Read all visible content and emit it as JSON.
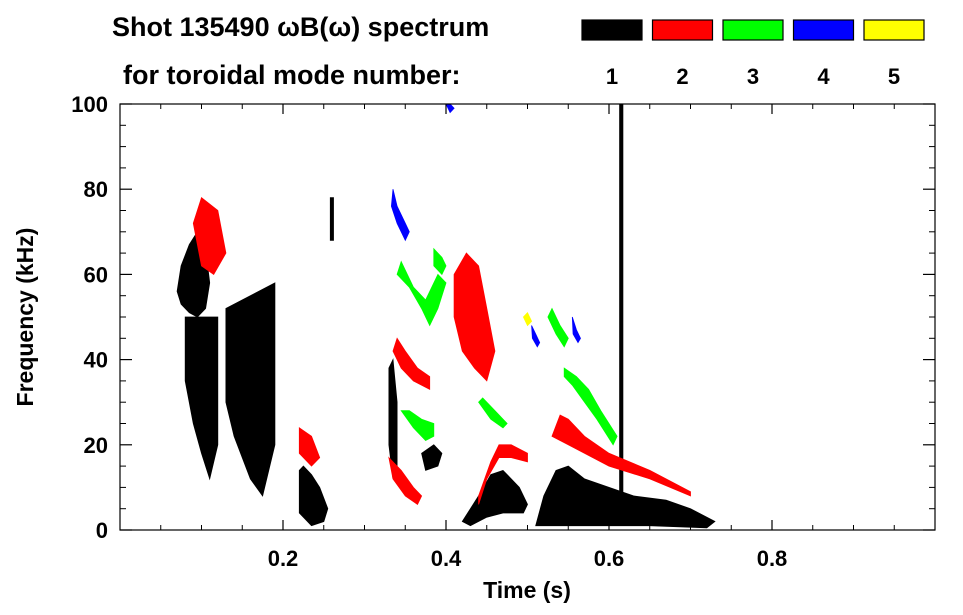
{
  "chart_data": {
    "type": "heatmap",
    "title_line1": "Shot 135490 ωB(ω) spectrum",
    "title_line2": "for toroidal mode number:",
    "xlabel": "Time (s)",
    "ylabel": "Frequency (kHz)",
    "xlim": [
      0.0,
      1.0
    ],
    "ylim": [
      0,
      100
    ],
    "x_ticks": [
      0.2,
      0.4,
      0.6,
      0.8
    ],
    "x_tick_labels": [
      "0.2",
      "0.4",
      "0.6",
      "0.8"
    ],
    "y_ticks": [
      0,
      20,
      40,
      60,
      80,
      100
    ],
    "y_tick_labels": [
      "0",
      "20",
      "40",
      "60",
      "80",
      "100"
    ],
    "grid": false,
    "legend_position": "top-right",
    "legend": [
      {
        "label": "1",
        "color": "#000000"
      },
      {
        "label": "2",
        "color": "#ff0000"
      },
      {
        "label": "3",
        "color": "#00ff00"
      },
      {
        "label": "4",
        "color": "#0000ff"
      },
      {
        "label": "5",
        "color": "#ffff00"
      }
    ],
    "features": [
      {
        "mode": 1,
        "name": "n1-blob-early",
        "points": [
          [
            0.07,
            56
          ],
          [
            0.075,
            62
          ],
          [
            0.085,
            67
          ],
          [
            0.095,
            70
          ],
          [
            0.105,
            66
          ],
          [
            0.11,
            58
          ],
          [
            0.105,
            52
          ],
          [
            0.095,
            50
          ],
          [
            0.085,
            51
          ],
          [
            0.075,
            53
          ]
        ]
      },
      {
        "mode": 1,
        "name": "n1-streaks-early",
        "points": [
          [
            0.08,
            50
          ],
          [
            0.12,
            50
          ],
          [
            0.12,
            20
          ],
          [
            0.11,
            12
          ],
          [
            0.1,
            18
          ],
          [
            0.09,
            25
          ],
          [
            0.08,
            35
          ]
        ]
      },
      {
        "mode": 1,
        "name": "n1-streaks-mid",
        "points": [
          [
            0.13,
            52
          ],
          [
            0.19,
            58
          ],
          [
            0.19,
            20
          ],
          [
            0.175,
            8
          ],
          [
            0.16,
            12
          ],
          [
            0.14,
            22
          ],
          [
            0.13,
            30
          ]
        ]
      },
      {
        "mode": 1,
        "name": "n1-burst-0.23",
        "points": [
          [
            0.22,
            14
          ],
          [
            0.225,
            15
          ],
          [
            0.235,
            13
          ],
          [
            0.245,
            10
          ],
          [
            0.255,
            5
          ],
          [
            0.25,
            2
          ],
          [
            0.235,
            1
          ],
          [
            0.22,
            4
          ]
        ]
      },
      {
        "mode": 1,
        "name": "n1-band-0.33",
        "points": [
          [
            0.33,
            38
          ],
          [
            0.335,
            40
          ],
          [
            0.34,
            30
          ],
          [
            0.34,
            15
          ],
          [
            0.335,
            12
          ],
          [
            0.33,
            20
          ]
        ]
      },
      {
        "mode": 1,
        "name": "n1-blob-0.38",
        "points": [
          [
            0.37,
            18
          ],
          [
            0.385,
            20
          ],
          [
            0.395,
            18
          ],
          [
            0.39,
            15
          ],
          [
            0.375,
            14
          ]
        ]
      },
      {
        "mode": 1,
        "name": "n1-bursts-0.45",
        "points": [
          [
            0.42,
            2
          ],
          [
            0.44,
            8
          ],
          [
            0.455,
            13
          ],
          [
            0.47,
            14
          ],
          [
            0.48,
            12
          ],
          [
            0.49,
            10
          ],
          [
            0.5,
            6
          ],
          [
            0.495,
            4
          ],
          [
            0.47,
            4
          ],
          [
            0.45,
            3
          ],
          [
            0.43,
            1
          ]
        ]
      },
      {
        "mode": 1,
        "name": "n1-bursts-0.55",
        "points": [
          [
            0.51,
            1
          ],
          [
            0.52,
            8
          ],
          [
            0.535,
            14
          ],
          [
            0.55,
            15
          ],
          [
            0.57,
            12
          ],
          [
            0.6,
            10
          ],
          [
            0.63,
            8
          ],
          [
            0.67,
            7
          ],
          [
            0.7,
            5
          ],
          [
            0.73,
            2
          ],
          [
            0.72,
            0.5
          ],
          [
            0.65,
            1
          ],
          [
            0.58,
            1
          ],
          [
            0.53,
            1
          ]
        ]
      },
      {
        "mode": 1,
        "name": "n1-line-0.61",
        "points": [
          [
            0.613,
            5
          ],
          [
            0.617,
            5
          ],
          [
            0.617,
            100
          ],
          [
            0.613,
            100
          ]
        ]
      },
      {
        "mode": 1,
        "name": "n1-line-0.26",
        "points": [
          [
            0.258,
            68
          ],
          [
            0.262,
            68
          ],
          [
            0.262,
            78
          ],
          [
            0.258,
            78
          ]
        ]
      },
      {
        "mode": 2,
        "name": "n2-early",
        "points": [
          [
            0.09,
            72
          ],
          [
            0.1,
            78
          ],
          [
            0.12,
            75
          ],
          [
            0.13,
            65
          ],
          [
            0.115,
            60
          ],
          [
            0.1,
            62
          ]
        ]
      },
      {
        "mode": 2,
        "name": "n2-0.22",
        "points": [
          [
            0.22,
            24
          ],
          [
            0.235,
            22
          ],
          [
            0.245,
            17
          ],
          [
            0.235,
            15
          ],
          [
            0.22,
            18
          ]
        ]
      },
      {
        "mode": 2,
        "name": "n2-chirp-0.36",
        "points": [
          [
            0.34,
            45
          ],
          [
            0.35,
            42
          ],
          [
            0.365,
            38
          ],
          [
            0.38,
            36
          ],
          [
            0.38,
            33
          ],
          [
            0.36,
            35
          ],
          [
            0.345,
            38
          ],
          [
            0.335,
            42
          ]
        ]
      },
      {
        "mode": 2,
        "name": "n2-chirp-0.36-low",
        "points": [
          [
            0.33,
            17
          ],
          [
            0.345,
            14
          ],
          [
            0.36,
            10
          ],
          [
            0.37,
            8
          ],
          [
            0.365,
            6
          ],
          [
            0.35,
            8
          ],
          [
            0.335,
            12
          ]
        ]
      },
      {
        "mode": 2,
        "name": "n2-blob-0.43",
        "points": [
          [
            0.41,
            60
          ],
          [
            0.425,
            65
          ],
          [
            0.44,
            62
          ],
          [
            0.45,
            52
          ],
          [
            0.46,
            42
          ],
          [
            0.45,
            35
          ],
          [
            0.435,
            38
          ],
          [
            0.42,
            42
          ],
          [
            0.41,
            50
          ]
        ]
      },
      {
        "mode": 2,
        "name": "n2-chirp-0.46",
        "points": [
          [
            0.44,
            8
          ],
          [
            0.455,
            16
          ],
          [
            0.465,
            20
          ],
          [
            0.48,
            20
          ],
          [
            0.5,
            18
          ],
          [
            0.5,
            16
          ],
          [
            0.48,
            17
          ],
          [
            0.465,
            17
          ],
          [
            0.45,
            12
          ],
          [
            0.44,
            6
          ]
        ]
      },
      {
        "mode": 2,
        "name": "n2-chirp-0.55",
        "points": [
          [
            0.53,
            22
          ],
          [
            0.54,
            27
          ],
          [
            0.55,
            26
          ],
          [
            0.57,
            22
          ],
          [
            0.6,
            18
          ],
          [
            0.65,
            14
          ],
          [
            0.7,
            9
          ],
          [
            0.7,
            8
          ],
          [
            0.65,
            12
          ],
          [
            0.6,
            15
          ],
          [
            0.57,
            18
          ],
          [
            0.55,
            20
          ],
          [
            0.54,
            21
          ]
        ]
      },
      {
        "mode": 3,
        "name": "n3-chirp-0.36",
        "points": [
          [
            0.34,
            60
          ],
          [
            0.355,
            57
          ],
          [
            0.37,
            52
          ],
          [
            0.38,
            48
          ],
          [
            0.39,
            52
          ],
          [
            0.4,
            58
          ],
          [
            0.39,
            60
          ],
          [
            0.375,
            54
          ],
          [
            0.36,
            57
          ],
          [
            0.345,
            63
          ]
        ]
      },
      {
        "mode": 3,
        "name": "n3-0.36-low",
        "points": [
          [
            0.345,
            28
          ],
          [
            0.36,
            24
          ],
          [
            0.375,
            21
          ],
          [
            0.385,
            22
          ],
          [
            0.385,
            25
          ],
          [
            0.37,
            26
          ],
          [
            0.355,
            28
          ]
        ]
      },
      {
        "mode": 3,
        "name": "n3-0.39-upper",
        "points": [
          [
            0.385,
            66
          ],
          [
            0.395,
            64
          ],
          [
            0.4,
            62
          ],
          [
            0.395,
            60
          ],
          [
            0.385,
            62
          ]
        ]
      },
      {
        "mode": 3,
        "name": "n3-chirp-0.45",
        "points": [
          [
            0.44,
            30
          ],
          [
            0.455,
            26
          ],
          [
            0.47,
            24
          ],
          [
            0.475,
            25
          ],
          [
            0.46,
            28
          ],
          [
            0.445,
            31
          ]
        ]
      },
      {
        "mode": 3,
        "name": "n3-chirp-0.56",
        "points": [
          [
            0.545,
            38
          ],
          [
            0.56,
            36
          ],
          [
            0.575,
            33
          ],
          [
            0.59,
            28
          ],
          [
            0.61,
            22
          ],
          [
            0.605,
            20
          ],
          [
            0.585,
            26
          ],
          [
            0.57,
            30
          ],
          [
            0.555,
            34
          ],
          [
            0.545,
            36
          ]
        ]
      },
      {
        "mode": 3,
        "name": "n3-0.54-upper",
        "points": [
          [
            0.53,
            52
          ],
          [
            0.54,
            48
          ],
          [
            0.55,
            45
          ],
          [
            0.545,
            43
          ],
          [
            0.535,
            46
          ],
          [
            0.525,
            50
          ]
        ]
      },
      {
        "mode": 4,
        "name": "n4-0.34",
        "points": [
          [
            0.335,
            80
          ],
          [
            0.34,
            76
          ],
          [
            0.35,
            72
          ],
          [
            0.355,
            70
          ],
          [
            0.35,
            68
          ],
          [
            0.34,
            72
          ],
          [
            0.333,
            76
          ]
        ]
      },
      {
        "mode": 4,
        "name": "n4-0.51",
        "points": [
          [
            0.505,
            48
          ],
          [
            0.51,
            46
          ],
          [
            0.515,
            44
          ],
          [
            0.512,
            43
          ],
          [
            0.506,
            45
          ]
        ]
      },
      {
        "mode": 4,
        "name": "n4-0.56",
        "points": [
          [
            0.555,
            50
          ],
          [
            0.56,
            47
          ],
          [
            0.565,
            45
          ],
          [
            0.562,
            44
          ],
          [
            0.556,
            46
          ]
        ]
      },
      {
        "mode": 4,
        "name": "n4-top",
        "points": [
          [
            0.4,
            100
          ],
          [
            0.405,
            98
          ],
          [
            0.41,
            99
          ],
          [
            0.405,
            100
          ]
        ]
      },
      {
        "mode": 5,
        "name": "n5-0.5",
        "points": [
          [
            0.495,
            50
          ],
          [
            0.5,
            51
          ],
          [
            0.505,
            49
          ],
          [
            0.5,
            48
          ]
        ]
      }
    ]
  }
}
